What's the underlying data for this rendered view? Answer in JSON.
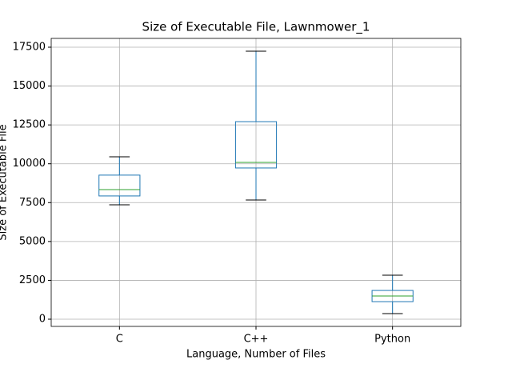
{
  "chart_data": {
    "type": "box",
    "title": "Size of Executable File, Lawnmower_1",
    "xlabel": "Language, Number of Files",
    "ylabel": "Size of Executable File",
    "categories": [
      "C",
      "C++",
      "Python"
    ],
    "boxes": [
      {
        "whislo": 7360,
        "q1": 7930,
        "med": 8340,
        "q3": 9270,
        "whishi": 10450
      },
      {
        "whislo": 7670,
        "q1": 9730,
        "med": 10090,
        "q3": 12710,
        "whishi": 17240
      },
      {
        "whislo": 360,
        "q1": 1130,
        "med": 1490,
        "q3": 1850,
        "whishi": 2830
      }
    ],
    "box_color": "#1f77b4",
    "median_color": "#2ca02c",
    "whisker_cap_color": "#000000",
    "ylim": [
      -463,
      18066
    ],
    "yticks": [
      0,
      2500,
      5000,
      7500,
      10000,
      12500,
      15000,
      17500
    ],
    "grid": true
  }
}
